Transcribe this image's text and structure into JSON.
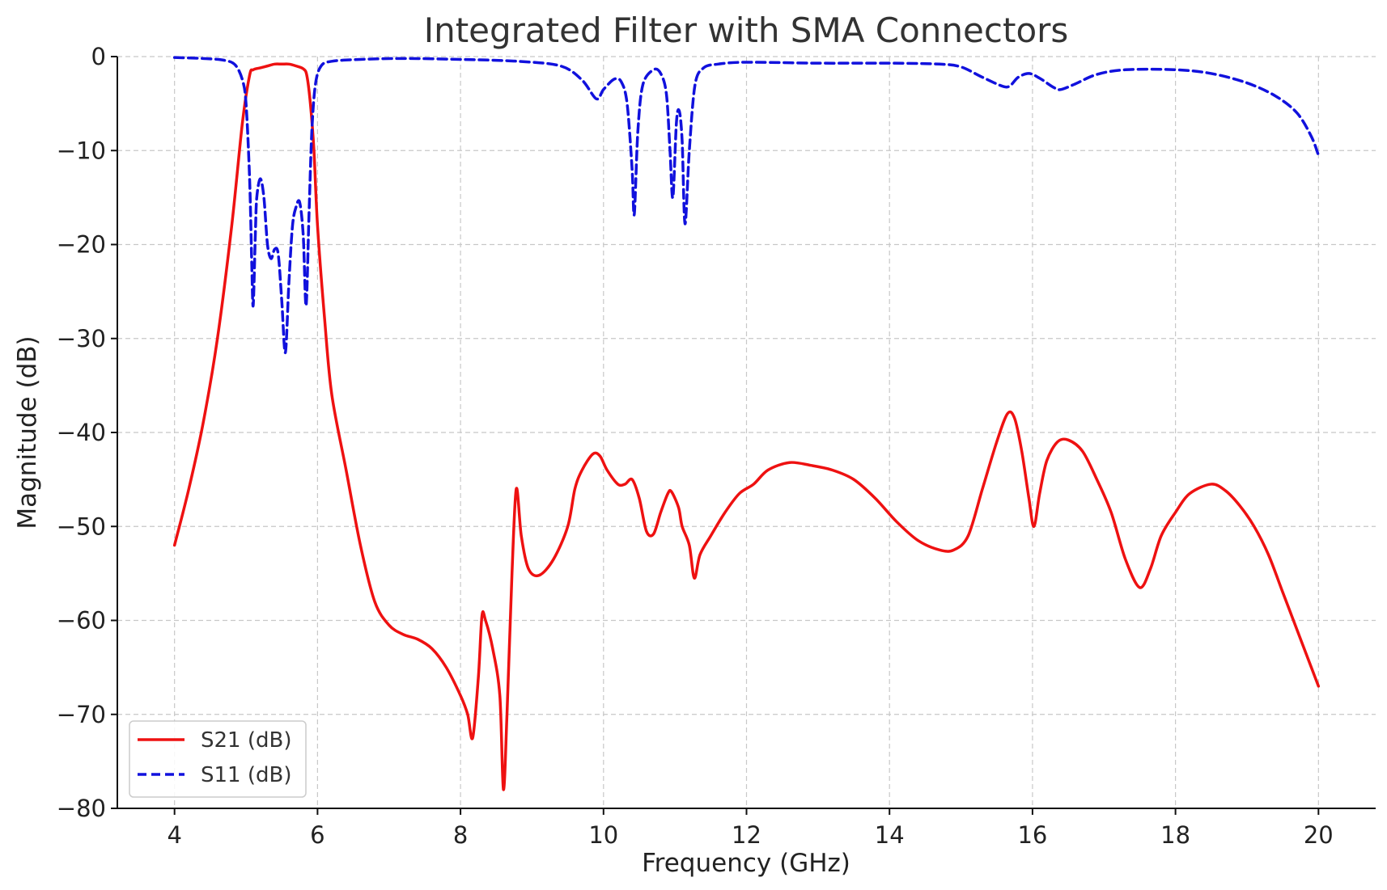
{
  "chart_data": {
    "type": "line",
    "title": "Integrated Filter with SMA Connectors",
    "xlabel": "Frequency (GHz)",
    "ylabel": "Magnitude (dB)",
    "xlim": [
      3.2,
      20.8
    ],
    "ylim": [
      -80,
      0
    ],
    "xticks": [
      4,
      6,
      8,
      10,
      12,
      14,
      16,
      18,
      20
    ],
    "yticks": [
      0,
      -10,
      -20,
      -30,
      -40,
      -50,
      -60,
      -70,
      -80
    ],
    "xtick_labels": [
      "4",
      "6",
      "8",
      "10",
      "12",
      "14",
      "16",
      "18",
      "20"
    ],
    "ytick_labels": [
      "0",
      "−10",
      "−20",
      "−30",
      "−40",
      "−50",
      "−60",
      "−70",
      "−80"
    ],
    "grid": true,
    "legend_position": "bottom-left",
    "series": [
      {
        "name": "S21 (dB)",
        "color": "#ee1111",
        "style": "solid",
        "points": [
          [
            4.0,
            -52
          ],
          [
            4.2,
            -46
          ],
          [
            4.4,
            -39
          ],
          [
            4.6,
            -30
          ],
          [
            4.8,
            -18
          ],
          [
            4.95,
            -7
          ],
          [
            5.05,
            -2
          ],
          [
            5.1,
            -1.4
          ],
          [
            5.2,
            -1.2
          ],
          [
            5.3,
            -1.0
          ],
          [
            5.4,
            -0.8
          ],
          [
            5.5,
            -0.8
          ],
          [
            5.6,
            -0.8
          ],
          [
            5.7,
            -1.0
          ],
          [
            5.8,
            -1.3
          ],
          [
            5.85,
            -2
          ],
          [
            5.9,
            -5
          ],
          [
            5.95,
            -10
          ],
          [
            6.0,
            -18
          ],
          [
            6.1,
            -28
          ],
          [
            6.2,
            -36
          ],
          [
            6.4,
            -44
          ],
          [
            6.6,
            -52
          ],
          [
            6.8,
            -58
          ],
          [
            7.0,
            -60.5
          ],
          [
            7.2,
            -61.5
          ],
          [
            7.4,
            -62
          ],
          [
            7.6,
            -63
          ],
          [
            7.8,
            -65
          ],
          [
            8.0,
            -68
          ],
          [
            8.1,
            -70
          ],
          [
            8.17,
            -72.5
          ],
          [
            8.25,
            -66
          ],
          [
            8.3,
            -59.5
          ],
          [
            8.35,
            -60
          ],
          [
            8.45,
            -63
          ],
          [
            8.55,
            -68
          ],
          [
            8.6,
            -78
          ],
          [
            8.65,
            -70
          ],
          [
            8.72,
            -55
          ],
          [
            8.78,
            -46
          ],
          [
            8.85,
            -51
          ],
          [
            8.95,
            -54.5
          ],
          [
            9.1,
            -55.2
          ],
          [
            9.3,
            -53.5
          ],
          [
            9.5,
            -50
          ],
          [
            9.6,
            -46
          ],
          [
            9.7,
            -44
          ],
          [
            9.85,
            -42.3
          ],
          [
            9.95,
            -42.5
          ],
          [
            10.05,
            -44
          ],
          [
            10.2,
            -45.5
          ],
          [
            10.3,
            -45.5
          ],
          [
            10.4,
            -45
          ],
          [
            10.5,
            -47
          ],
          [
            10.6,
            -50.5
          ],
          [
            10.7,
            -50.8
          ],
          [
            10.8,
            -48.5
          ],
          [
            10.9,
            -46.5
          ],
          [
            10.95,
            -46.3
          ],
          [
            11.05,
            -48
          ],
          [
            11.1,
            -50
          ],
          [
            11.2,
            -52
          ],
          [
            11.27,
            -55.5
          ],
          [
            11.35,
            -53
          ],
          [
            11.5,
            -51
          ],
          [
            11.7,
            -48.5
          ],
          [
            11.9,
            -46.5
          ],
          [
            12.1,
            -45.5
          ],
          [
            12.3,
            -44
          ],
          [
            12.6,
            -43.2
          ],
          [
            12.9,
            -43.5
          ],
          [
            13.2,
            -44
          ],
          [
            13.5,
            -45
          ],
          [
            13.8,
            -47
          ],
          [
            14.1,
            -49.5
          ],
          [
            14.4,
            -51.5
          ],
          [
            14.7,
            -52.5
          ],
          [
            14.9,
            -52.5
          ],
          [
            15.1,
            -51
          ],
          [
            15.3,
            -46
          ],
          [
            15.5,
            -41
          ],
          [
            15.65,
            -38
          ],
          [
            15.75,
            -38.5
          ],
          [
            15.85,
            -42
          ],
          [
            15.95,
            -47
          ],
          [
            16.02,
            -50
          ],
          [
            16.1,
            -46.5
          ],
          [
            16.2,
            -43
          ],
          [
            16.35,
            -41
          ],
          [
            16.5,
            -40.8
          ],
          [
            16.7,
            -42
          ],
          [
            16.9,
            -45
          ],
          [
            17.1,
            -48.5
          ],
          [
            17.3,
            -53.5
          ],
          [
            17.5,
            -56.5
          ],
          [
            17.65,
            -54.5
          ],
          [
            17.8,
            -51
          ],
          [
            18.0,
            -48.5
          ],
          [
            18.2,
            -46.5
          ],
          [
            18.5,
            -45.5
          ],
          [
            18.7,
            -46.2
          ],
          [
            18.9,
            -47.8
          ],
          [
            19.1,
            -50
          ],
          [
            19.3,
            -53
          ],
          [
            19.5,
            -57
          ],
          [
            19.7,
            -61
          ],
          [
            19.9,
            -65
          ],
          [
            20.0,
            -67
          ]
        ]
      },
      {
        "name": "S11 (dB)",
        "color": "#1111dd",
        "style": "dashed",
        "points": [
          [
            4.0,
            -0.1
          ],
          [
            4.4,
            -0.2
          ],
          [
            4.7,
            -0.4
          ],
          [
            4.85,
            -0.9
          ],
          [
            4.95,
            -2.5
          ],
          [
            5.0,
            -5
          ],
          [
            5.05,
            -13
          ],
          [
            5.08,
            -22
          ],
          [
            5.1,
            -26.5
          ],
          [
            5.13,
            -19
          ],
          [
            5.15,
            -15
          ],
          [
            5.2,
            -13
          ],
          [
            5.25,
            -15
          ],
          [
            5.3,
            -20
          ],
          [
            5.35,
            -21.5
          ],
          [
            5.4,
            -20.5
          ],
          [
            5.45,
            -21
          ],
          [
            5.5,
            -26
          ],
          [
            5.55,
            -31.5
          ],
          [
            5.6,
            -24
          ],
          [
            5.65,
            -18
          ],
          [
            5.7,
            -16
          ],
          [
            5.75,
            -15.5
          ],
          [
            5.8,
            -19
          ],
          [
            5.84,
            -26.5
          ],
          [
            5.88,
            -17
          ],
          [
            5.92,
            -8
          ],
          [
            5.97,
            -3
          ],
          [
            6.05,
            -1
          ],
          [
            6.2,
            -0.5
          ],
          [
            6.6,
            -0.3
          ],
          [
            7.2,
            -0.2
          ],
          [
            8.0,
            -0.3
          ],
          [
            8.8,
            -0.5
          ],
          [
            9.4,
            -1.0
          ],
          [
            9.7,
            -2.5
          ],
          [
            9.9,
            -4.5
          ],
          [
            10.0,
            -3.5
          ],
          [
            10.15,
            -2.4
          ],
          [
            10.25,
            -2.7
          ],
          [
            10.33,
            -5
          ],
          [
            10.4,
            -12
          ],
          [
            10.43,
            -16.8
          ],
          [
            10.48,
            -8
          ],
          [
            10.55,
            -3
          ],
          [
            10.7,
            -1.4
          ],
          [
            10.8,
            -1.8
          ],
          [
            10.88,
            -4
          ],
          [
            10.93,
            -10
          ],
          [
            10.97,
            -15
          ],
          [
            11.02,
            -7
          ],
          [
            11.06,
            -5.8
          ],
          [
            11.1,
            -9
          ],
          [
            11.14,
            -17.8
          ],
          [
            11.2,
            -10
          ],
          [
            11.28,
            -3
          ],
          [
            11.4,
            -1.2
          ],
          [
            11.6,
            -0.8
          ],
          [
            12.0,
            -0.6
          ],
          [
            13.0,
            -0.7
          ],
          [
            14.0,
            -0.7
          ],
          [
            14.7,
            -0.8
          ],
          [
            15.0,
            -1.1
          ],
          [
            15.3,
            -2.2
          ],
          [
            15.6,
            -3.2
          ],
          [
            15.7,
            -3.0
          ],
          [
            15.8,
            -2.2
          ],
          [
            15.95,
            -1.8
          ],
          [
            16.1,
            -2.3
          ],
          [
            16.3,
            -3.3
          ],
          [
            16.4,
            -3.5
          ],
          [
            16.6,
            -2.9
          ],
          [
            16.9,
            -1.9
          ],
          [
            17.3,
            -1.4
          ],
          [
            18.0,
            -1.4
          ],
          [
            18.5,
            -1.8
          ],
          [
            19.0,
            -2.8
          ],
          [
            19.4,
            -4.2
          ],
          [
            19.7,
            -6
          ],
          [
            19.9,
            -8.5
          ],
          [
            20.0,
            -10.5
          ]
        ]
      }
    ]
  }
}
